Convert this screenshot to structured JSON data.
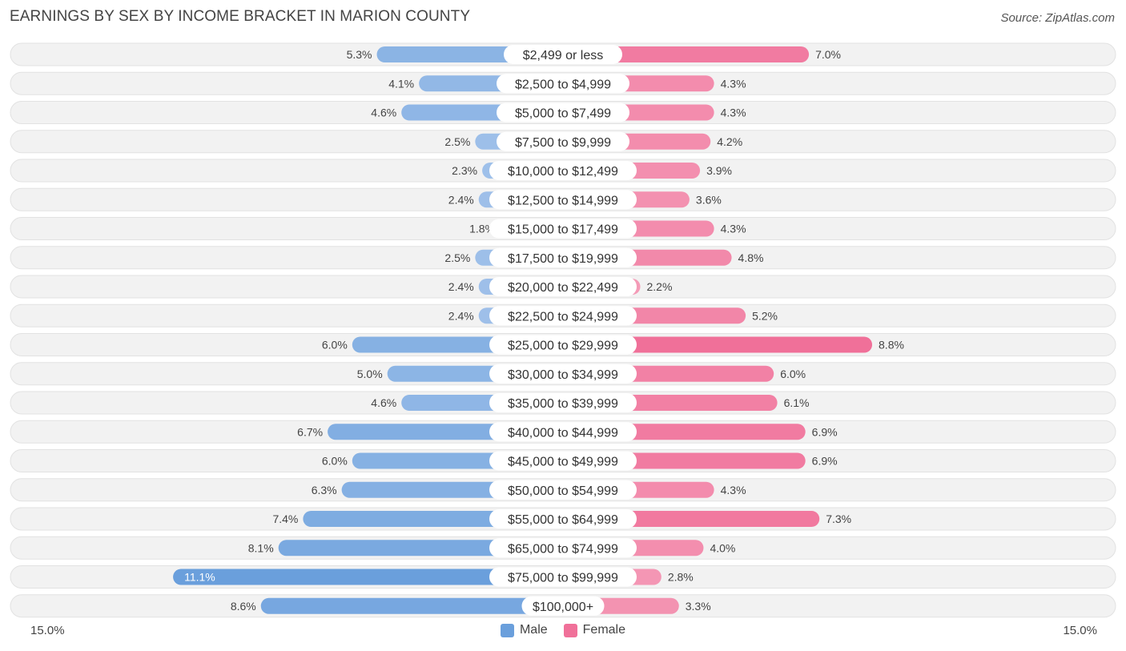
{
  "title": "EARNINGS BY SEX BY INCOME BRACKET IN MARION COUNTY",
  "source": "Source: ZipAtlas.com",
  "axis": {
    "left_label": "15.0%",
    "right_label": "15.0%"
  },
  "legend": {
    "male": "Male",
    "female": "Female"
  },
  "colors": {
    "male": "#6a9fdc",
    "female": "#f07099",
    "male_light": "#b3cdef",
    "female_light": "#f6b0c6"
  },
  "chart_data": {
    "type": "bar",
    "orientation": "horizontal-diverging",
    "title": "EARNINGS BY SEX BY INCOME BRACKET IN MARION COUNTY",
    "xlim": [
      -15.0,
      15.0
    ],
    "categories": [
      "$2,499 or less",
      "$2,500 to $4,999",
      "$5,000 to $7,499",
      "$7,500 to $9,999",
      "$10,000 to $12,499",
      "$12,500 to $14,999",
      "$15,000 to $17,499",
      "$17,500 to $19,999",
      "$20,000 to $22,499",
      "$22,500 to $24,999",
      "$25,000 to $29,999",
      "$30,000 to $34,999",
      "$35,000 to $39,999",
      "$40,000 to $44,999",
      "$45,000 to $49,999",
      "$50,000 to $54,999",
      "$55,000 to $64,999",
      "$65,000 to $74,999",
      "$75,000 to $99,999",
      "$100,000+"
    ],
    "series": [
      {
        "name": "Male",
        "values": [
          5.3,
          4.1,
          4.6,
          2.5,
          2.3,
          2.4,
          1.8,
          2.5,
          2.4,
          2.4,
          6.0,
          5.0,
          4.6,
          6.7,
          6.0,
          6.3,
          7.4,
          8.1,
          11.1,
          8.6
        ],
        "labels": [
          "5.3%",
          "4.1%",
          "4.6%",
          "2.5%",
          "2.3%",
          "2.4%",
          "1.8%",
          "2.5%",
          "2.4%",
          "2.4%",
          "6.0%",
          "5.0%",
          "4.6%",
          "6.7%",
          "6.0%",
          "6.3%",
          "7.4%",
          "8.1%",
          "11.1%",
          "8.6%"
        ]
      },
      {
        "name": "Female",
        "values": [
          7.0,
          4.3,
          4.3,
          4.2,
          3.9,
          3.6,
          4.3,
          4.8,
          2.2,
          5.2,
          8.8,
          6.0,
          6.1,
          6.9,
          6.9,
          4.3,
          7.3,
          4.0,
          2.8,
          3.3
        ],
        "labels": [
          "7.0%",
          "4.3%",
          "4.3%",
          "4.2%",
          "3.9%",
          "3.6%",
          "4.3%",
          "4.8%",
          "2.2%",
          "5.2%",
          "8.8%",
          "6.0%",
          "6.1%",
          "6.9%",
          "6.9%",
          "4.3%",
          "7.3%",
          "4.0%",
          "2.8%",
          "3.3%"
        ]
      }
    ]
  }
}
